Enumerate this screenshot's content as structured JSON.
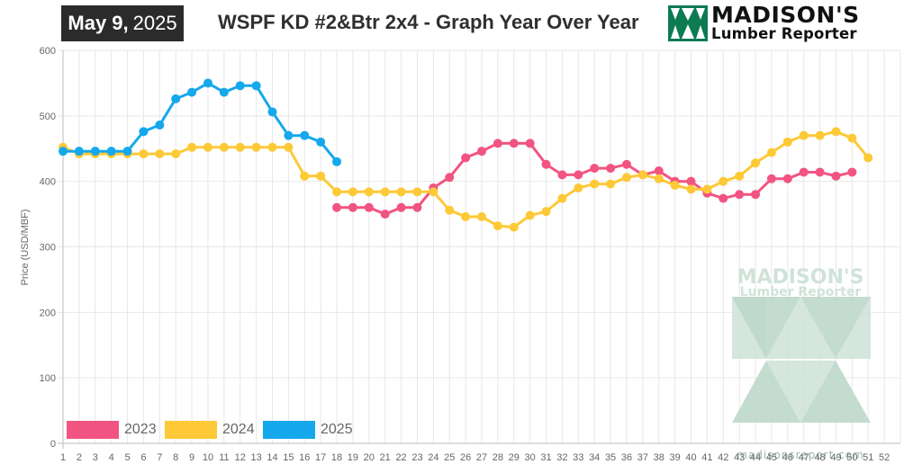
{
  "header": {
    "date_month_day": "May 9,",
    "date_year": "2025",
    "title": "WSPF KD #2&Btr 2x4 - Graph Year Over Year",
    "logo_line1": "MADISON'S",
    "logo_line2": "Lumber Reporter",
    "logo_icon": "madisons-logo-icon"
  },
  "watermark": {
    "line1": "MADISON'S",
    "line2": "Lumber Reporter",
    "url": "madisonsreport.com",
    "color": "#cfe3d9"
  },
  "chart_data": {
    "type": "line",
    "title": "WSPF KD #2&Btr 2x4 - Graph Year Over Year",
    "xlabel": "",
    "ylabel": "Price (USD/MBF)",
    "x": [
      1,
      2,
      3,
      4,
      5,
      6,
      7,
      8,
      9,
      10,
      11,
      12,
      13,
      14,
      15,
      16,
      17,
      18,
      19,
      20,
      21,
      22,
      23,
      24,
      25,
      26,
      27,
      28,
      29,
      30,
      31,
      32,
      33,
      34,
      35,
      36,
      37,
      38,
      39,
      40,
      41,
      42,
      43,
      44,
      45,
      46,
      47,
      48,
      49,
      50,
      51,
      52
    ],
    "ylim": [
      0,
      600
    ],
    "yticks": [
      0,
      100,
      200,
      300,
      400,
      500,
      600
    ],
    "grid": true,
    "legend_position": "bottom-left",
    "series": [
      {
        "name": "2023",
        "color": "#f25482",
        "x": [
          18,
          19,
          20,
          21,
          22,
          23,
          24,
          25,
          26,
          27,
          28,
          29,
          30,
          31,
          32,
          33,
          34,
          35,
          36,
          37,
          38,
          39,
          40,
          41,
          42,
          43,
          44,
          45,
          46,
          47,
          48,
          49,
          50
        ],
        "values": [
          360,
          360,
          360,
          350,
          360,
          360,
          390,
          406,
          436,
          446,
          458,
          458,
          458,
          426,
          410,
          410,
          420,
          420,
          426,
          410,
          416,
          400,
          400,
          382,
          374,
          380,
          380,
          404,
          404,
          414,
          414,
          408,
          414
        ]
      },
      {
        "name": "2024",
        "color": "#fdc936",
        "x": [
          1,
          2,
          3,
          4,
          5,
          6,
          7,
          8,
          9,
          10,
          11,
          12,
          13,
          14,
          15,
          16,
          17,
          18,
          19,
          20,
          21,
          22,
          23,
          24,
          25,
          26,
          27,
          28,
          29,
          30,
          31,
          32,
          33,
          34,
          35,
          36,
          37,
          38,
          39,
          40,
          41,
          42,
          43,
          44,
          45,
          46,
          47,
          48,
          49,
          50,
          51
        ],
        "values": [
          452,
          442,
          442,
          442,
          442,
          442,
          442,
          442,
          452,
          452,
          452,
          452,
          452,
          452,
          452,
          408,
          408,
          384,
          384,
          384,
          384,
          384,
          384,
          384,
          356,
          346,
          346,
          332,
          330,
          348,
          354,
          374,
          390,
          396,
          396,
          406,
          410,
          404,
          394,
          388,
          388,
          400,
          408,
          428,
          444,
          460,
          470,
          470,
          476,
          466,
          436
        ]
      },
      {
        "name": "2025",
        "color": "#16a8ec",
        "x": [
          1,
          2,
          3,
          4,
          5,
          6,
          7,
          8,
          9,
          10,
          11,
          12,
          13,
          14,
          15,
          16,
          17,
          18
        ],
        "values": [
          446,
          446,
          446,
          446,
          446,
          476,
          486,
          526,
          536,
          550,
          536,
          546,
          546,
          506,
          470,
          470,
          460,
          430
        ]
      }
    ]
  }
}
